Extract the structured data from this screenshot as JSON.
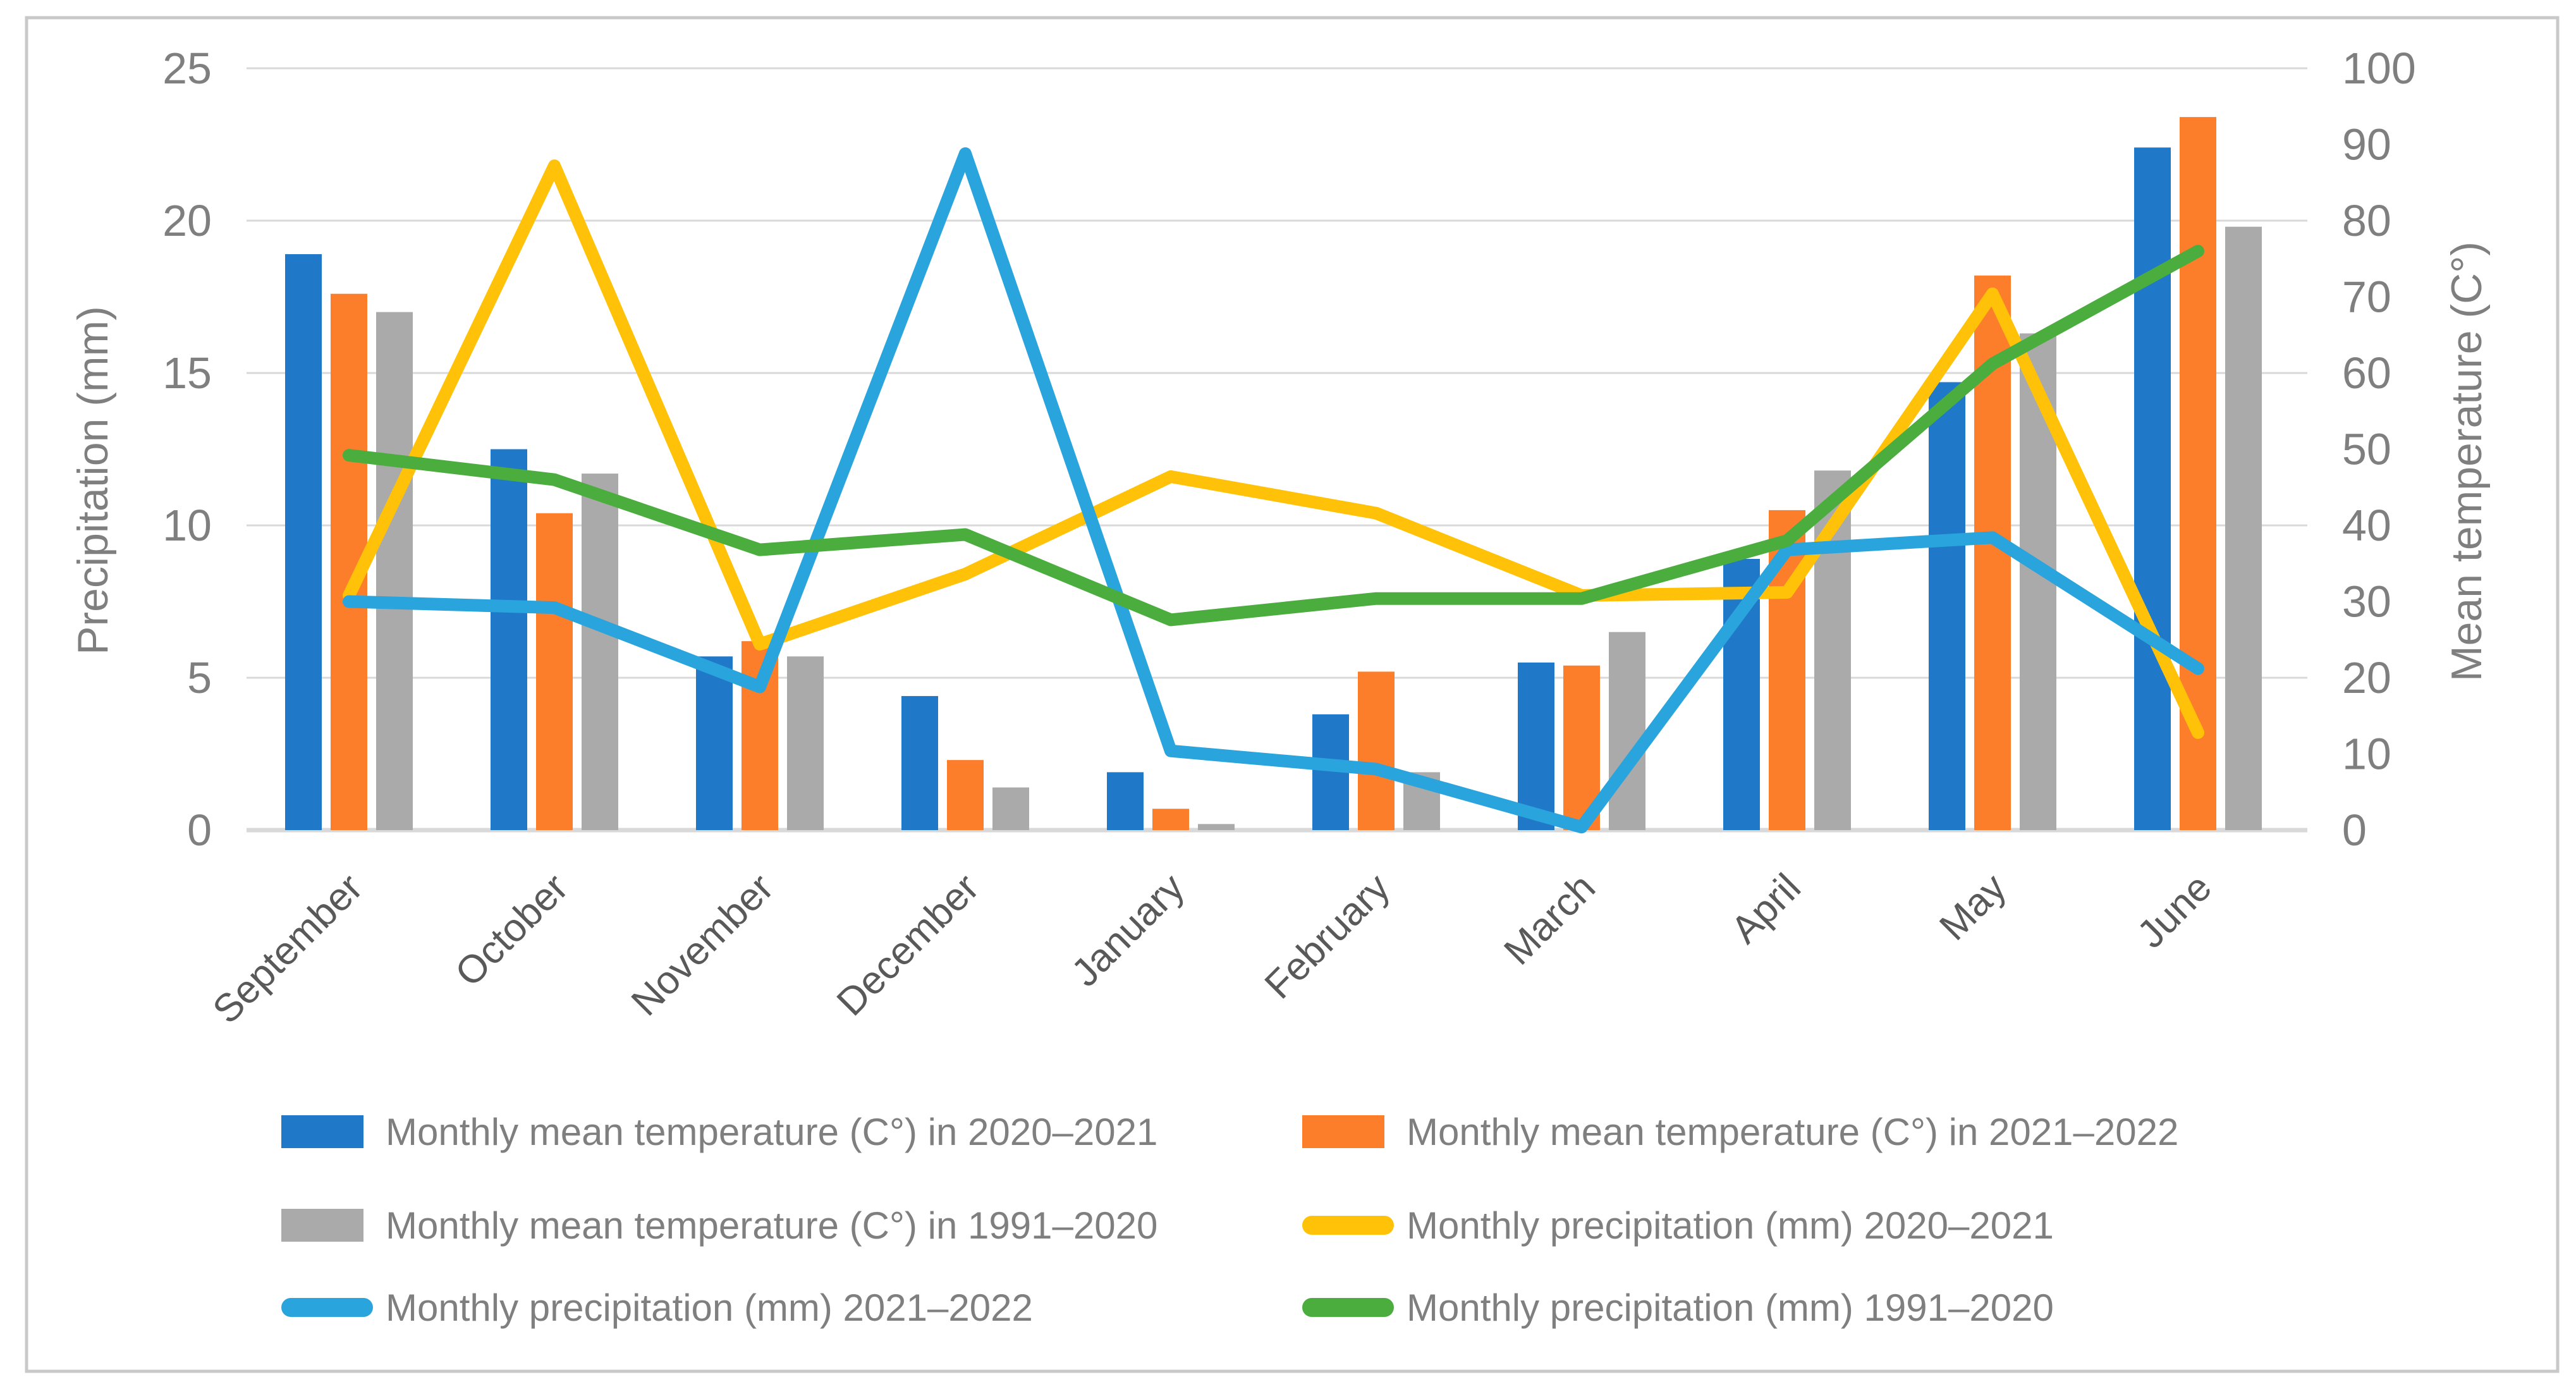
{
  "figure": {
    "background": "#ffffff",
    "border_color": "#c9c9c9",
    "gridline_color": "#d9d9d9",
    "text_color": "#7f7f7f",
    "month_label_color": "#595959"
  },
  "chart_data": {
    "type": "bar",
    "subtype": "combo-bar-line-dual-axis",
    "categories": [
      "September",
      "October",
      "November",
      "December",
      "January",
      "February",
      "March",
      "April",
      "May",
      "June"
    ],
    "left_axis": {
      "title": "Precipitation (mm)",
      "min": 0,
      "max": 25,
      "ticks": [
        0,
        5,
        10,
        15,
        20,
        25
      ]
    },
    "right_axis": {
      "title": "Mean temperature (C°)",
      "min": 0,
      "max": 100,
      "ticks": [
        0,
        10,
        20,
        30,
        40,
        50,
        60,
        70,
        80,
        90,
        100
      ]
    },
    "grid": true,
    "legend_position": "bottom",
    "series": [
      {
        "key": "temp-2020-2021",
        "name": "Monthly mean temperature (C°) in 2020–2021",
        "type": "bar",
        "color": "#1f78c8",
        "axis_units": "left-scale",
        "values": [
          18.9,
          12.5,
          5.7,
          4.4,
          1.9,
          3.8,
          5.5,
          8.9,
          14.7,
          22.4
        ]
      },
      {
        "key": "temp-2021-2022",
        "name": "Monthly mean temperature (C°) in 2021–2022",
        "type": "bar",
        "color": "#fc7e2a",
        "axis_units": "left-scale",
        "values": [
          17.6,
          10.4,
          6.2,
          2.3,
          0.7,
          5.2,
          5.4,
          10.5,
          18.2,
          23.4
        ]
      },
      {
        "key": "temp-1991-2020",
        "name": "Monthly mean temperature (C°) in 1991–2020",
        "type": "bar",
        "color": "#aaaaaa",
        "axis_units": "left-scale",
        "values": [
          17.0,
          11.7,
          5.7,
          1.4,
          0.2,
          1.9,
          6.5,
          11.8,
          16.3,
          19.8
        ]
      },
      {
        "key": "precip-2020-2021",
        "name": "Monthly  precipitation (mm) 2020–2021",
        "type": "line",
        "color": "#ffc208",
        "axis_units": "left-scale",
        "values": [
          7.7,
          21.8,
          6.1,
          8.4,
          11.6,
          10.4,
          7.7,
          7.8,
          17.6,
          3.2
        ],
        "values_right_axis": [
          31,
          87,
          24,
          34,
          46,
          42,
          31,
          31,
          70,
          13
        ]
      },
      {
        "key": "precip-2021-2022",
        "name": "Monthly  precipitation (mm) 2021–2022",
        "type": "line",
        "color": "#29a4dd",
        "axis_units": "left-scale",
        "values": [
          7.5,
          7.3,
          4.7,
          22.2,
          2.6,
          2.0,
          0.1,
          9.2,
          9.6,
          5.3
        ],
        "values_right_axis": [
          30,
          29,
          19,
          89,
          10,
          8,
          0,
          37,
          38,
          21
        ]
      },
      {
        "key": "precip-1991-2020",
        "name": "Monthly  precipitation (mm) 1991–2020",
        "type": "line",
        "color": "#4aad3e",
        "axis_units": "left-scale",
        "values": [
          12.3,
          11.5,
          9.2,
          9.7,
          6.9,
          7.6,
          7.6,
          9.5,
          15.3,
          19.0
        ],
        "values_right_axis": [
          49,
          46,
          37,
          39,
          28,
          30,
          30,
          38,
          61,
          76
        ]
      }
    ]
  }
}
